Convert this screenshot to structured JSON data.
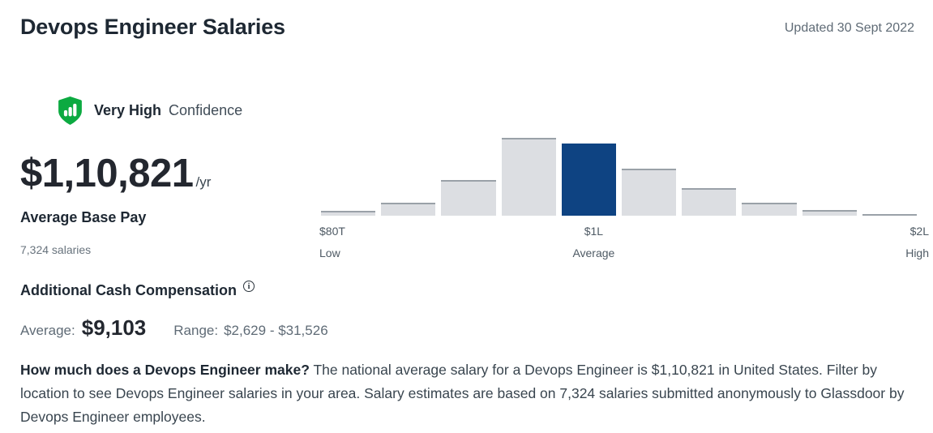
{
  "header": {
    "title": "Devops Engineer Salaries",
    "updated": "Updated 30 Sept 2022"
  },
  "confidence_badge": {
    "level": "Very High",
    "label": "Confidence"
  },
  "base_pay": {
    "amount": "$1,10,821",
    "period": "/yr",
    "label": "Average Base Pay",
    "sample_size": "7,324 salaries"
  },
  "chart_data": {
    "type": "bar",
    "values": [
      6,
      17,
      46,
      100,
      93,
      60,
      35,
      17,
      7,
      2
    ],
    "values_note": "relative bar heights, percent of tallest bar; no y-axis shown",
    "highlighted_index": 4,
    "x_ticks": [
      {
        "value": "$80T",
        "label": "Low",
        "position": "left"
      },
      {
        "value": "$1L",
        "label": "Average",
        "position": "center"
      },
      {
        "value": "$2L",
        "label": "High",
        "position": "right"
      }
    ],
    "legend": false,
    "grid": false,
    "colors": {
      "bar": "#dcdee2",
      "bar_top_border": "#9aa1a8",
      "highlight": "#0e4382"
    }
  },
  "additional_compensation": {
    "title": "Additional Cash Compensation",
    "info_icon_glyph": "i",
    "average_label": "Average:",
    "average_value": "$9,103",
    "range_label": "Range:",
    "range_value": "$2,629 - $31,526"
  },
  "description": {
    "lead": "How much does a Devops Engineer make?",
    "body": " The national average salary for a Devops Engineer is $1,10,821 in United States. Filter by location to see Devops Engineer salaries in your area. Salary estimates are based on 7,324 salaries submitted anonymously to Glassdoor by Devops Engineer employees."
  },
  "colors": {
    "accent_green": "#0caa41",
    "accent_blue": "#0e4382",
    "text_dark": "#1e2833",
    "text_gray": "#5f6b76"
  }
}
